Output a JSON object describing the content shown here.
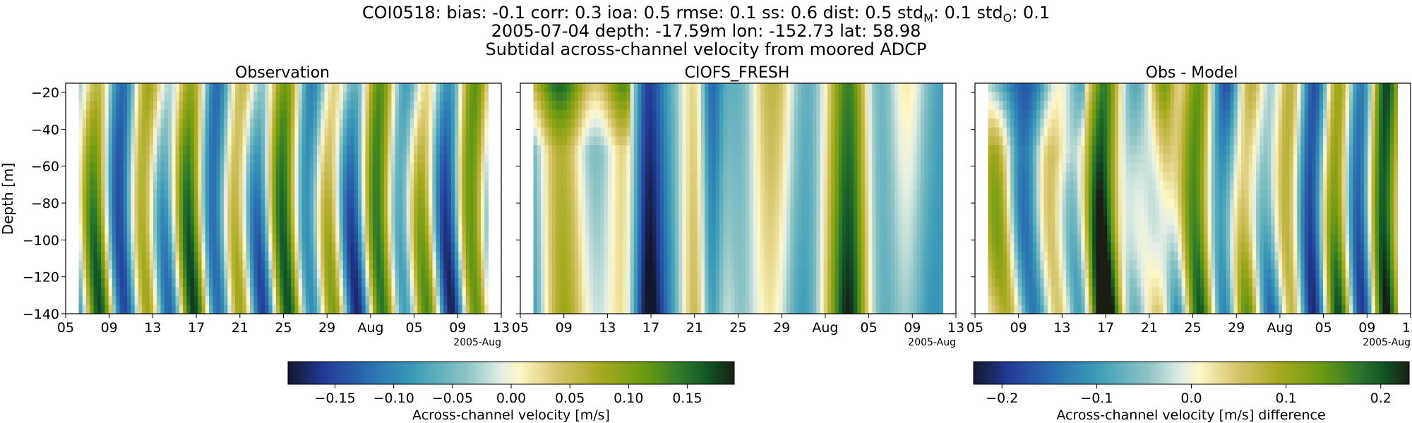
{
  "figure": {
    "title_prefix": "COI0518: bias: -0.1  corr: 0.3  ioa: 0.5  rmse: 0.1  ss: 0.6  dist: 0.5  std",
    "title_sub_m": "M",
    "title_mid": ": 0.1  std",
    "title_sub_o": "O",
    "title_suffix": ": 0.1",
    "title_line2": "2005-07-04 depth: -17.59m lon: -152.73 lat: 58.98",
    "title_line3": "Subtidal across-channel velocity from moored ADCP"
  },
  "chart_data": [
    {
      "type": "heatmap",
      "title": "Observation",
      "ylabel": "Depth [m]",
      "xlabel": "",
      "x_range": [
        "2005-07-05",
        "2005-08-14"
      ],
      "ylim": [
        -140,
        -15
      ],
      "xticks": [
        "05",
        "09",
        "13",
        "17",
        "21",
        "25",
        "29",
        "Aug",
        "05",
        "09",
        "13"
      ],
      "yticks": [
        -20,
        -40,
        -60,
        -80,
        -100,
        -120,
        -140
      ],
      "x_offset_label": "2005-Aug",
      "colormap": "diverging-blue-cream-green",
      "color_range": [
        -0.19,
        0.19
      ]
    },
    {
      "type": "heatmap",
      "title": "CIOFS_FRESH",
      "ylabel": "",
      "xlabel": "",
      "x_range": [
        "2005-07-05",
        "2005-08-14"
      ],
      "ylim": [
        -140,
        -15
      ],
      "xticks": [
        "05",
        "09",
        "13",
        "17",
        "21",
        "25",
        "29",
        "Aug",
        "05",
        "09",
        "13"
      ],
      "x_offset_label": "2005-Aug",
      "colormap": "diverging-blue-cream-green",
      "color_range": [
        -0.19,
        0.19
      ]
    },
    {
      "type": "heatmap",
      "title": "Obs - Model",
      "ylabel": "",
      "xlabel": "",
      "x_range": [
        "2005-07-05",
        "2005-08-14"
      ],
      "ylim": [
        -140,
        -15
      ],
      "xticks": [
        "05",
        "09",
        "13",
        "17",
        "21",
        "25",
        "29",
        "Aug",
        "05",
        "09",
        "13"
      ],
      "x_offset_label": "2005-Aug",
      "colormap": "diverging-blue-cream-green",
      "color_range": [
        -0.23,
        0.23
      ]
    }
  ],
  "colorbars": [
    {
      "label": "Across-channel velocity [m/s]",
      "range": [
        -0.19,
        0.19
      ],
      "ticks": [
        "−0.15",
        "−0.10",
        "−0.05",
        "0.00",
        "0.05",
        "0.10",
        "0.15"
      ],
      "tick_values": [
        -0.15,
        -0.1,
        -0.05,
        0.0,
        0.05,
        0.1,
        0.15
      ]
    },
    {
      "label": "Across-channel velocity [m/s] difference",
      "range": [
        -0.23,
        0.23
      ],
      "ticks": [
        "−0.2",
        "−0.1",
        "0.0",
        "0.1",
        "0.2"
      ],
      "tick_values": [
        -0.2,
        -0.1,
        0.0,
        0.1,
        0.2
      ]
    }
  ],
  "colors": {
    "colormap_stops": [
      "#13172e",
      "#233a96",
      "#2a6db0",
      "#3a9bb8",
      "#8cc4c4",
      "#e6efe6",
      "#fcf7c4",
      "#d7c770",
      "#a7aa1e",
      "#6c9a12",
      "#2d7a2c",
      "#0f4e24",
      "#1a1d12"
    ]
  }
}
